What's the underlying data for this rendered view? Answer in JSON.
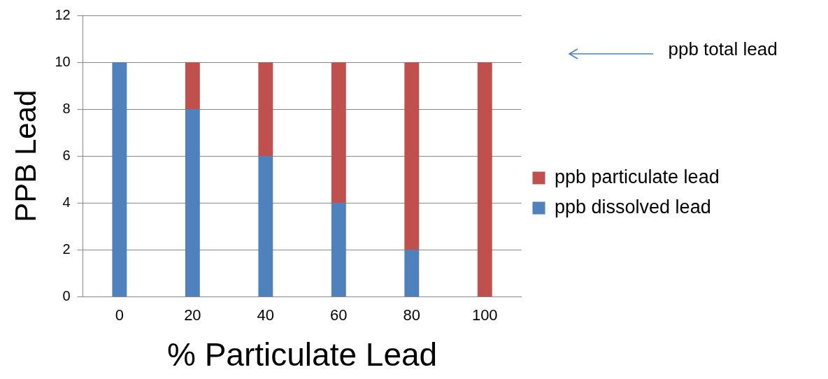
{
  "chart_data": {
    "type": "bar",
    "stacked": true,
    "xlabel": "% Particulate Lead",
    "ylabel": "PPB Lead",
    "categories": [
      "0",
      "20",
      "40",
      "60",
      "80",
      "100"
    ],
    "series": [
      {
        "name": "ppb dissolved lead",
        "color": "#4f81bd",
        "values": [
          10,
          8,
          6,
          4,
          2,
          0
        ]
      },
      {
        "name": "ppb particulate lead",
        "color": "#c0504d",
        "values": [
          0,
          2,
          4,
          6,
          8,
          10
        ]
      }
    ],
    "ylim": [
      0,
      12
    ],
    "yticks": [
      0,
      2,
      4,
      6,
      8,
      10,
      12
    ],
    "grid": "y",
    "legend": "right",
    "annotations": [
      "ppb total lead"
    ]
  }
}
